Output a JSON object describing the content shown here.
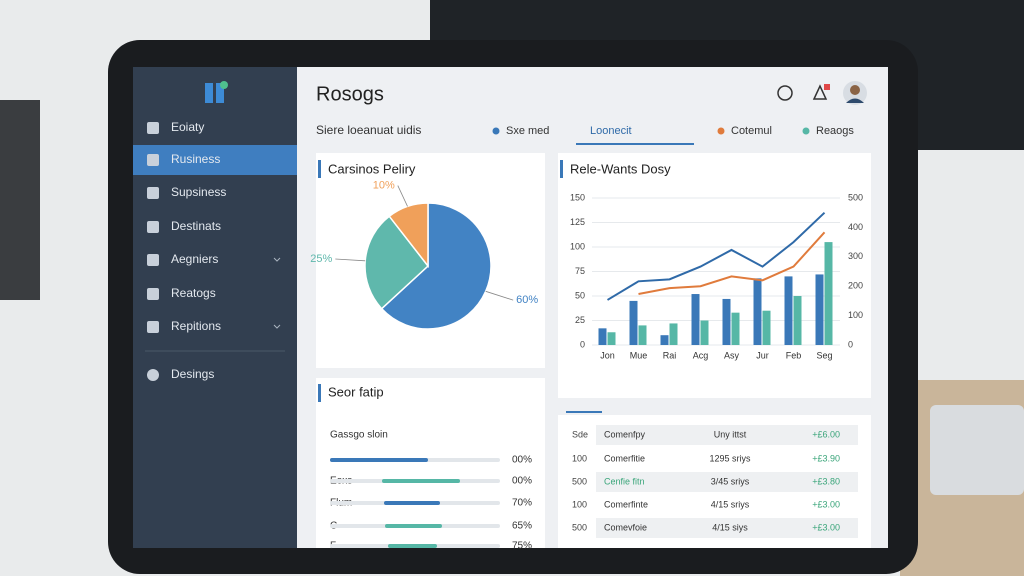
{
  "sidebar": {
    "items": [
      "Eoiaty",
      "Rusiness",
      "Supsiness",
      "Destinats",
      "Aegniers",
      "Reatogs",
      "Repitions",
      "Desings"
    ]
  },
  "header": {
    "title": "Rosogs"
  },
  "subheader": {
    "label": "Siere loeanuat uidis"
  },
  "panels": {
    "pie_title": "Carsinos Peliry",
    "combo_title": "Rele-Wants Dosy",
    "progress_title": "Seor fatip",
    "progress_subtitle": "Gassgo sloin"
  },
  "progress": [
    {
      "pct": "00%"
    },
    {
      "label": "Eoxs",
      "pct": "00%"
    },
    {
      "label": "Flum",
      "pct": "70%"
    },
    {
      "label": "C",
      "pct": "65%"
    },
    {
      "label": "F",
      "pct": "75%"
    }
  ],
  "table": {
    "rows": [
      [
        "Sde",
        "Comenfpy",
        "Uny ittst",
        "+£6.00"
      ],
      [
        "100",
        "Comerfitie",
        "1295 sriys",
        "+£3.90"
      ],
      [
        "500",
        "Cenfie fitn",
        "3/45 sriys",
        "+£3.80"
      ],
      [
        "100",
        "Comerfinte",
        "4/15 sriys",
        "+£3.00"
      ],
      [
        "500",
        "Comevfoie",
        "4/15 siys",
        "+£3.00"
      ]
    ]
  },
  "chart_data": [
    {
      "type": "pie",
      "values": [
        60,
        25,
        10
      ],
      "value_labels": [
        "60%",
        "25%",
        "10%"
      ],
      "colors": [
        "#4283c4",
        "#5fb8ac",
        "#f0a05a"
      ]
    },
    {
      "type": "bar",
      "categories": [
        "Jon",
        "Mue",
        "Rai",
        "Acg",
        "Asy",
        "Jur",
        "Feb",
        "Seg"
      ],
      "series": [
        {
          "name": "Sxe med",
          "type": "bar",
          "color": "#3a78b8",
          "values": [
            17,
            45,
            10,
            52,
            47,
            68,
            70,
            72
          ]
        },
        {
          "name": "Reaogs",
          "type": "bar",
          "color": "#56b7a6",
          "values": [
            13,
            20,
            22,
            25,
            33,
            35,
            50,
            105
          ]
        },
        {
          "name": "Loonecit",
          "type": "line",
          "color": "#2f6aa8",
          "values": [
            46,
            65,
            67,
            80,
            97,
            80,
            105,
            135
          ]
        },
        {
          "name": "Cotemul",
          "type": "line",
          "color": "#e07b3c",
          "values": [
            null,
            52,
            58,
            60,
            70,
            66,
            80,
            115
          ]
        }
      ],
      "ylim": [
        0,
        150
      ],
      "yticks": [
        0,
        25,
        50,
        75,
        100,
        125,
        150
      ],
      "y2lim": [
        0,
        500
      ],
      "y2ticks": [
        0,
        100,
        200,
        300,
        400,
        500
      ],
      "grid": true
    }
  ]
}
